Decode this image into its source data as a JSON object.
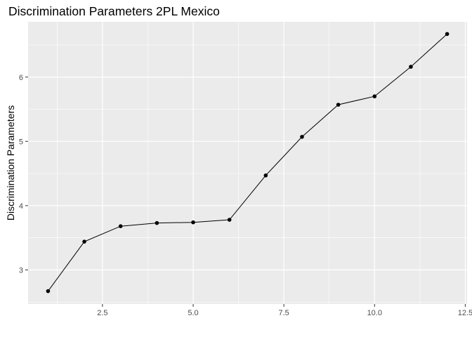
{
  "chart_data": {
    "type": "line",
    "title": "Discrimination Parameters 2PL Mexico",
    "xlabel": "",
    "ylabel": "Discrimination Parameters",
    "xlim": [
      0.45,
      12.55
    ],
    "ylim": [
      2.47,
      6.86
    ],
    "x_ticks": [
      {
        "value": 2.5,
        "label": "2.5"
      },
      {
        "value": 5.0,
        "label": "5.0"
      },
      {
        "value": 7.5,
        "label": "7.5"
      },
      {
        "value": 10.0,
        "label": "10.0"
      },
      {
        "value": 12.5,
        "label": "12.5"
      }
    ],
    "y_ticks": [
      {
        "value": 3,
        "label": "3"
      },
      {
        "value": 4,
        "label": "4"
      },
      {
        "value": 5,
        "label": "5"
      },
      {
        "value": 6,
        "label": "6"
      }
    ],
    "grid": true,
    "legend": "none",
    "series": [
      {
        "x": [
          1,
          2,
          3,
          4,
          5,
          6,
          7,
          8,
          9,
          10,
          11,
          12
        ],
        "values": [
          2.67,
          3.44,
          3.68,
          3.73,
          3.74,
          3.78,
          4.47,
          5.07,
          5.57,
          5.7,
          6.16,
          6.67
        ]
      }
    ],
    "colors": {
      "panel_background": "#ebebeb",
      "grid_major": "#ffffff",
      "line": "#000000",
      "point": "#000000"
    }
  }
}
